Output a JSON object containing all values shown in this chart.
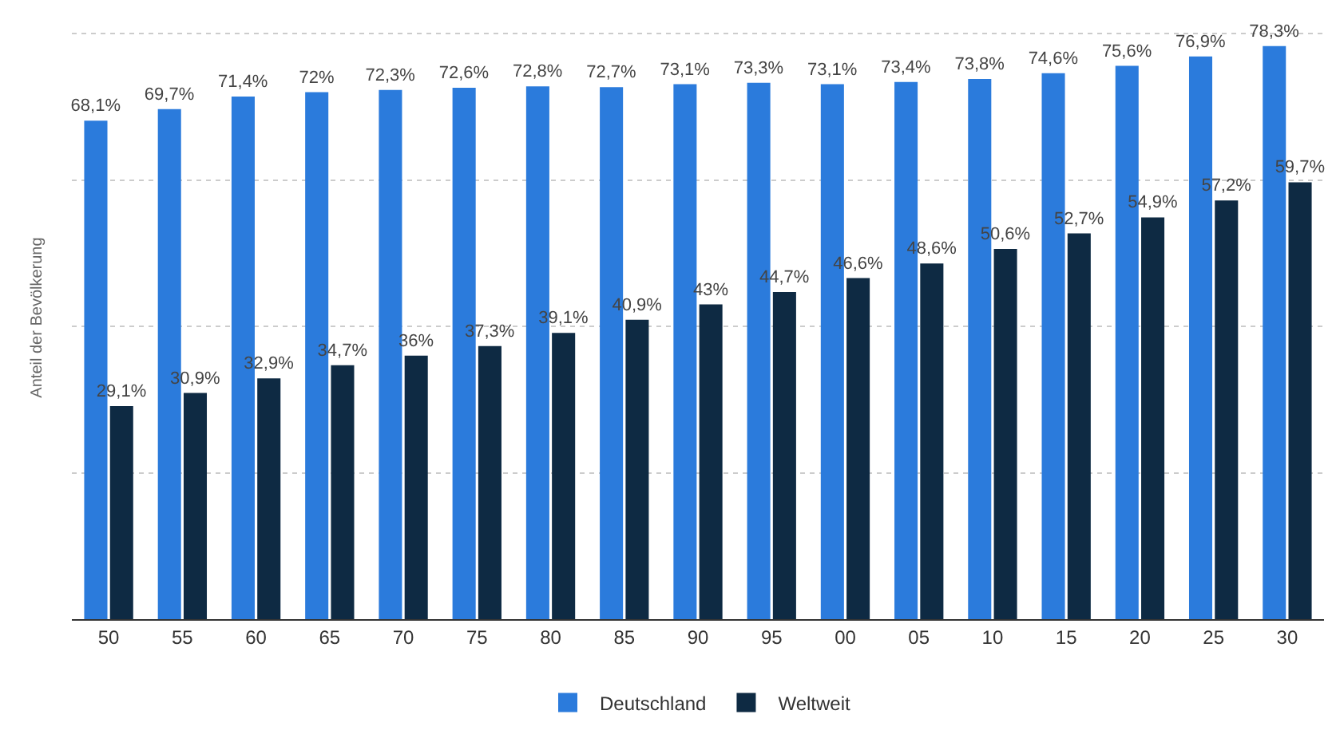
{
  "chart_data": {
    "type": "bar",
    "ylabel": "Anteil der Bevölkerung",
    "categories": [
      "50",
      "55",
      "60",
      "65",
      "70",
      "75",
      "80",
      "85",
      "90",
      "95",
      "00",
      "05",
      "10",
      "15",
      "20",
      "25",
      "30"
    ],
    "series": [
      {
        "name": "Deutschland",
        "color": "#2b7bdc",
        "values": [
          68.1,
          69.7,
          71.4,
          72,
          72.3,
          72.6,
          72.8,
          72.7,
          73.1,
          73.3,
          73.1,
          73.4,
          73.8,
          74.6,
          75.6,
          76.9,
          78.3
        ],
        "value_labels": [
          "68,1%",
          "69,7%",
          "71,4%",
          "72%",
          "72,3%",
          "72,6%",
          "72,8%",
          "72,7%",
          "73,1%",
          "73,3%",
          "73,1%",
          "73,4%",
          "73,8%",
          "74,6%",
          "75,6%",
          "76,9%",
          "78,3%"
        ]
      },
      {
        "name": "Weltweit",
        "color": "#0e2a43",
        "values": [
          29.1,
          30.9,
          32.9,
          34.7,
          36,
          37.3,
          39.1,
          40.9,
          43,
          44.7,
          46.6,
          48.6,
          50.6,
          52.7,
          54.9,
          57.2,
          59.7
        ],
        "value_labels": [
          "29,1%",
          "30,9%",
          "32,9%",
          "34,7%",
          "36%",
          "37,3%",
          "39,1%",
          "40,9%",
          "43%",
          "44,7%",
          "46,6%",
          "48,6%",
          "50,6%",
          "52,7%",
          "54,9%",
          "57,2%",
          "59,7%"
        ]
      }
    ],
    "yticks": [
      {
        "value": 0,
        "label": null
      },
      {
        "value": 20,
        "label": null
      },
      {
        "value": 40,
        "label": null
      },
      {
        "value": 60,
        "label": null
      },
      {
        "value": 80,
        "label": null
      }
    ],
    "grid": "y",
    "legend": "bottom",
    "tick_labels": "x"
  }
}
